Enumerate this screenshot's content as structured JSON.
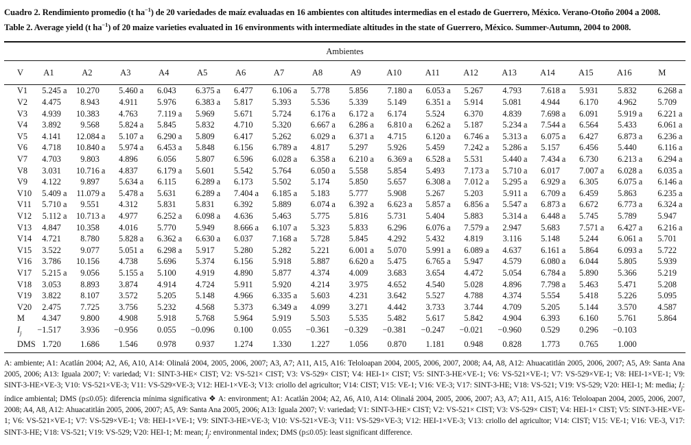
{
  "page": {
    "title_es_pre": "Cuadro 2. Rendimiento promedio (t ha",
    "title_sup": "−1",
    "title_es_post": ") de 20 variedades de maíz evaluadas en 16 ambientes con altitudes intermedias en el estado de Guerrero, México. Verano-Otoño 2004 a 2008.",
    "title_en_pre": "Table 2. Average yield (t ha",
    "title_en_post": ") of 20 maize varieties evaluated in 16 environments with intermediate altitudes in the state of Guerrero, México. Summer-Autumn, 2004 to 2008."
  },
  "table": {
    "spanner": "Ambientes",
    "columns": [
      "V",
      "A1",
      "A2",
      "A3",
      "A4",
      "A5",
      "A6",
      "A7",
      "A8",
      "A9",
      "A10",
      "A11",
      "A12",
      "A13",
      "A14",
      "A15",
      "A16",
      "M"
    ],
    "rows": [
      {
        "label": "V1",
        "cells": [
          "5.245 a",
          "10.270",
          "5.460 a",
          "6.043",
          "6.375 a",
          "6.477",
          "6.106 a",
          "5.778",
          "5.856",
          "7.180 a",
          "6.053 a",
          "5.267",
          "4.793",
          "7.618 a",
          "5.931",
          "5.832",
          "6.268 a"
        ]
      },
      {
        "label": "V2",
        "cells": [
          "4.475",
          "8.943",
          "4.911",
          "5.976",
          "6.383 a",
          "5.817",
          "5.393",
          "5.536",
          "5.339",
          "5.149",
          "6.351 a",
          "5.914",
          "5.081",
          "4.944",
          "6.170",
          "4.962",
          "5.709"
        ]
      },
      {
        "label": "V3",
        "cells": [
          "4.939",
          "10.383",
          "4.763",
          "7.119 a",
          "5.969",
          "5.671",
          "5.724",
          "6.176 a",
          "6.172 a",
          "6.174",
          "5.524",
          "6.370",
          "4.839",
          "7.698 a",
          "6.091",
          "5.919 a",
          "6.221 a"
        ]
      },
      {
        "label": "V4",
        "cells": [
          "3.892",
          "9.568",
          "5.824 a",
          "5.845",
          "5.832",
          "4.710",
          "5.320",
          "6.667 a",
          "6.286 a",
          "6.810 a",
          "6.262 a",
          "5.187",
          "5.234 a",
          "7.544 a",
          "6.564",
          "5.433",
          "6.061 a"
        ]
      },
      {
        "label": "V5",
        "cells": [
          "4.141",
          "12.084 a",
          "5.107 a",
          "6.290 a",
          "5.809",
          "6.417",
          "5.262",
          "6.029 a",
          "6.371 a",
          "4.715",
          "6.120 a",
          "6.746 a",
          "5.313 a",
          "6.075 a",
          "6.427",
          "6.873 a",
          "6.236 a"
        ]
      },
      {
        "label": "V6",
        "cells": [
          "4.718",
          "10.840 a",
          "5.974 a",
          "6.453 a",
          "5.848",
          "6.156",
          "6.789 a",
          "4.817",
          "5.297",
          "5.926",
          "5.459",
          "7.242 a",
          "5.286 a",
          "5.157",
          "6.456",
          "5.440",
          "6.116 a"
        ]
      },
      {
        "label": "V7",
        "cells": [
          "4.703",
          "9.803",
          "4.896",
          "6.056",
          "5.807",
          "6.596",
          "6.028 a",
          "6.358 a",
          "6.210 a",
          "6.369 a",
          "6.528 a",
          "5.531",
          "5.440 a",
          "7.434 a",
          "6.730",
          "6.213 a",
          "6.294 a"
        ]
      },
      {
        "label": "V8",
        "cells": [
          "3.031",
          "10.716 a",
          "4.837",
          "6.179 a",
          "5.601",
          "5.542",
          "5.764",
          "6.050 a",
          "5.558",
          "5.854",
          "5.493",
          "7.173 a",
          "5.710 a",
          "6.017",
          "7.007 a",
          "6.028 a",
          "6.035 a"
        ]
      },
      {
        "label": "V9",
        "cells": [
          "4.122",
          "9.897",
          "5.634 a",
          "6.115",
          "6.289 a",
          "6.173",
          "5.502",
          "5.174",
          "5.850",
          "5.657",
          "6.308 a",
          "7.012 a",
          "5.295 a",
          "6.929 a",
          "6.305",
          "6.075 a",
          "6.146 a"
        ]
      },
      {
        "label": "V10",
        "cells": [
          "5.409 a",
          "11.079 a",
          "5.478 a",
          "5.631",
          "6.289 a",
          "7.404 a",
          "6.185 a",
          "5.183",
          "5.777",
          "5.908",
          "5.267",
          "5.203",
          "5.911 a",
          "6.709 a",
          "6.459",
          "5.863",
          "6.235 a"
        ]
      },
      {
        "label": "V11",
        "cells": [
          "5.710 a",
          "9.551",
          "4.312",
          "5.831",
          "5.831",
          "6.392",
          "5.889",
          "6.074 a",
          "6.392 a",
          "6.623 a",
          "5.857 a",
          "6.856 a",
          "5.547 a",
          "6.873 a",
          "6.672",
          "6.773 a",
          "6.324 a"
        ]
      },
      {
        "label": "V12",
        "cells": [
          "5.112 a",
          "10.713 a",
          "4.977",
          "6.252 a",
          "6.098 a",
          "4.636",
          "5.463",
          "5.775",
          "5.816",
          "5.731",
          "5.404",
          "5.883",
          "5.314 a",
          "6.448 a",
          "5.745",
          "5.789",
          "5.947"
        ]
      },
      {
        "label": "V13",
        "cells": [
          "4.847",
          "10.358",
          "4.016",
          "5.770",
          "5.949",
          "8.666 a",
          "6.107 a",
          "5.323",
          "5.833",
          "6.296",
          "6.076 a",
          "7.579 a",
          "2.947",
          "5.683",
          "7.571 a",
          "6.427 a",
          "6.216 a"
        ]
      },
      {
        "label": "V14",
        "cells": [
          "4.721",
          "8.780",
          "5.828 a",
          "6.362 a",
          "6.630 a",
          "6.037",
          "7.168 a",
          "5.728",
          "5.845",
          "4.292",
          "5.432",
          "4.819",
          "3.116",
          "5.148",
          "5.244",
          "6.061 a",
          "5.701"
        ]
      },
      {
        "label": "V15",
        "cells": [
          "3.522",
          "9.077",
          "5.051 a",
          "6.298 a",
          "5.917",
          "5.280",
          "5.282",
          "5.221",
          "6.001 a",
          "5.070",
          "5.991 a",
          "6.089 a",
          "4.637",
          "6.161 a",
          "5.864",
          "6.093 a",
          "5.722"
        ]
      },
      {
        "label": "V16",
        "cells": [
          "3.786",
          "10.156",
          "4.738",
          "5.696",
          "5.374",
          "6.156",
          "5.918",
          "5.887",
          "6.620 a",
          "5.475",
          "6.765 a",
          "5.947",
          "4.579",
          "6.080 a",
          "6.044",
          "5.805",
          "5.939"
        ]
      },
      {
        "label": "V17",
        "cells": [
          "5.215 a",
          "9.056",
          "5.155 a",
          "5.100",
          "4.919",
          "4.890",
          "5.877",
          "4.374",
          "4.009",
          "3.683",
          "3.654",
          "4.472",
          "5.054",
          "6.784 a",
          "5.890",
          "5.366",
          "5.219"
        ]
      },
      {
        "label": "V18",
        "cells": [
          "3.053",
          "8.893",
          "3.874",
          "4.914",
          "4.724",
          "5.911",
          "5.920",
          "4.214",
          "3.975",
          "4.652",
          "4.540",
          "5.028",
          "4.896",
          "7.798 a",
          "5.463",
          "5.471",
          "5.208"
        ]
      },
      {
        "label": "V19",
        "cells": [
          "3.822",
          "8.107",
          "3.572",
          "5.205",
          "5.148",
          "4.966",
          "6.335 a",
          "5.603",
          "4.231",
          "3.642",
          "5.527",
          "4.788",
          "4.374",
          "5.554",
          "5.418",
          "5.226",
          "5.095"
        ]
      },
      {
        "label": "V20",
        "cells": [
          "2.475",
          "7.725",
          "3.756",
          "5.232",
          "4.568",
          "5.373",
          "6.349 a",
          "4.099",
          "3.271",
          "4.442",
          "3.733",
          "3.744",
          "4.709",
          "5.205",
          "5.144",
          "3.570",
          "4.587"
        ]
      },
      {
        "label": "M",
        "cells": [
          "4.347",
          "9.800",
          "4.908",
          "5.918",
          "5.768",
          "5.964",
          "5.919",
          "5.503",
          "5.535",
          "5.482",
          "5.617",
          "5.842",
          "4.904",
          "6.393",
          "6.160",
          "5.761",
          "5.864"
        ]
      },
      {
        "label": "I",
        "sub": "j",
        "cells": [
          "−1.517",
          "3.936",
          "−0.956",
          "0.055",
          "−0.096",
          "0.100",
          "0.055",
          "−0.361",
          "−0.329",
          "−0.381",
          "−0.247",
          "−0.021",
          "−0.960",
          "0.529",
          "0.296",
          "−0.103",
          ""
        ]
      },
      {
        "label": "DMS",
        "cells": [
          "1.720",
          "1.686",
          "1.546",
          "0.978",
          "0.937",
          "1.274",
          "1.330",
          "1.227",
          "1.056",
          "0.870",
          "1.181",
          "0.948",
          "0.828",
          "1.773",
          "0.765",
          "1.000",
          ""
        ]
      }
    ]
  },
  "footnote": {
    "segments": [
      {
        "t": "A: ambiente; A1: Acatlán 2004; A2, A6, A10, A14: Olinalá 2004, 2005, 2006, 2007; A3, A7; A11, A15, A16: Teloloapan 2004, 2005, 2006, 2007, 2008; A4, A8, A12: Ahuacatitlán 2005, 2006, 2007; A5, A9: Santa Ana 2005, 2006; A13: Iguala 2007; V: variedad; V1: SINT-3-HE× CIST; V2: VS-521× CIST; V3: VS-529× CIST; V4: HEI-1× CIST; V5: SINT-3-HE×VE-1; V6: VS-521×VE-1; V7: VS-529×VE-1; V8: HEI-1×VE-1; V9: SINT-3-HE×VE-3; V10: VS-521×VE-3; V11: VS-529×VE-3; V12: HEI-1×VE-3; V13: criollo del agricultor; V14: CIST; V15: VE-1; V16: VE-3; V17: SINT-3-HE; V18: VS-521; V19: VS-529; V20: HEI-1; M: media; "
      },
      {
        "t": "I",
        "em": true
      },
      {
        "t": "j",
        "em": true,
        "sub": true
      },
      {
        "t": ": índice ambiental; DMS (p≤0.05): diferencia mínima significativa ❖ A: environment; A1: Acatlán 2004; A2, A6, A10, A14: Olinalá 2004, 2005, 2006, 2007; A3, A7; A11, A15, A16: Teloloapan 2004, 2005, 2006, 2007, 2008; A4, A8, A12: Ahuacatitlán 2005, 2006, 2007; A5, A9: Santa Ana 2005, 2006; A13: Iguala 2007; V: variedad; V1: SINT-3-HE× CIST; V2: VS-521× CIST; V3: VS-529× CIST; V4: HEI-1× CIST; V5: SINT-3-HE×VE-1; V6: VS-521×VE-1; V7: VS-529×VE-1; V8: HEI-1×VE-1; V9: SINT-3-HE×VE-3; V10: VS-521×VE-3; V11: VS-529×VE-3; V12: HEI-1×VE-3; V13: criollo del agricultor; V14: CIST; V15: VE-1; V16: VE-3, V17: SINT-3-HE; V18: VS-521; V19: VS-529; V20: HEI-1; M: mean; "
      },
      {
        "t": "I",
        "em": true
      },
      {
        "t": "j",
        "em": true,
        "sub": true
      },
      {
        "t": ": environmental index; DMS (p≤0.05): least significant difference."
      }
    ]
  }
}
